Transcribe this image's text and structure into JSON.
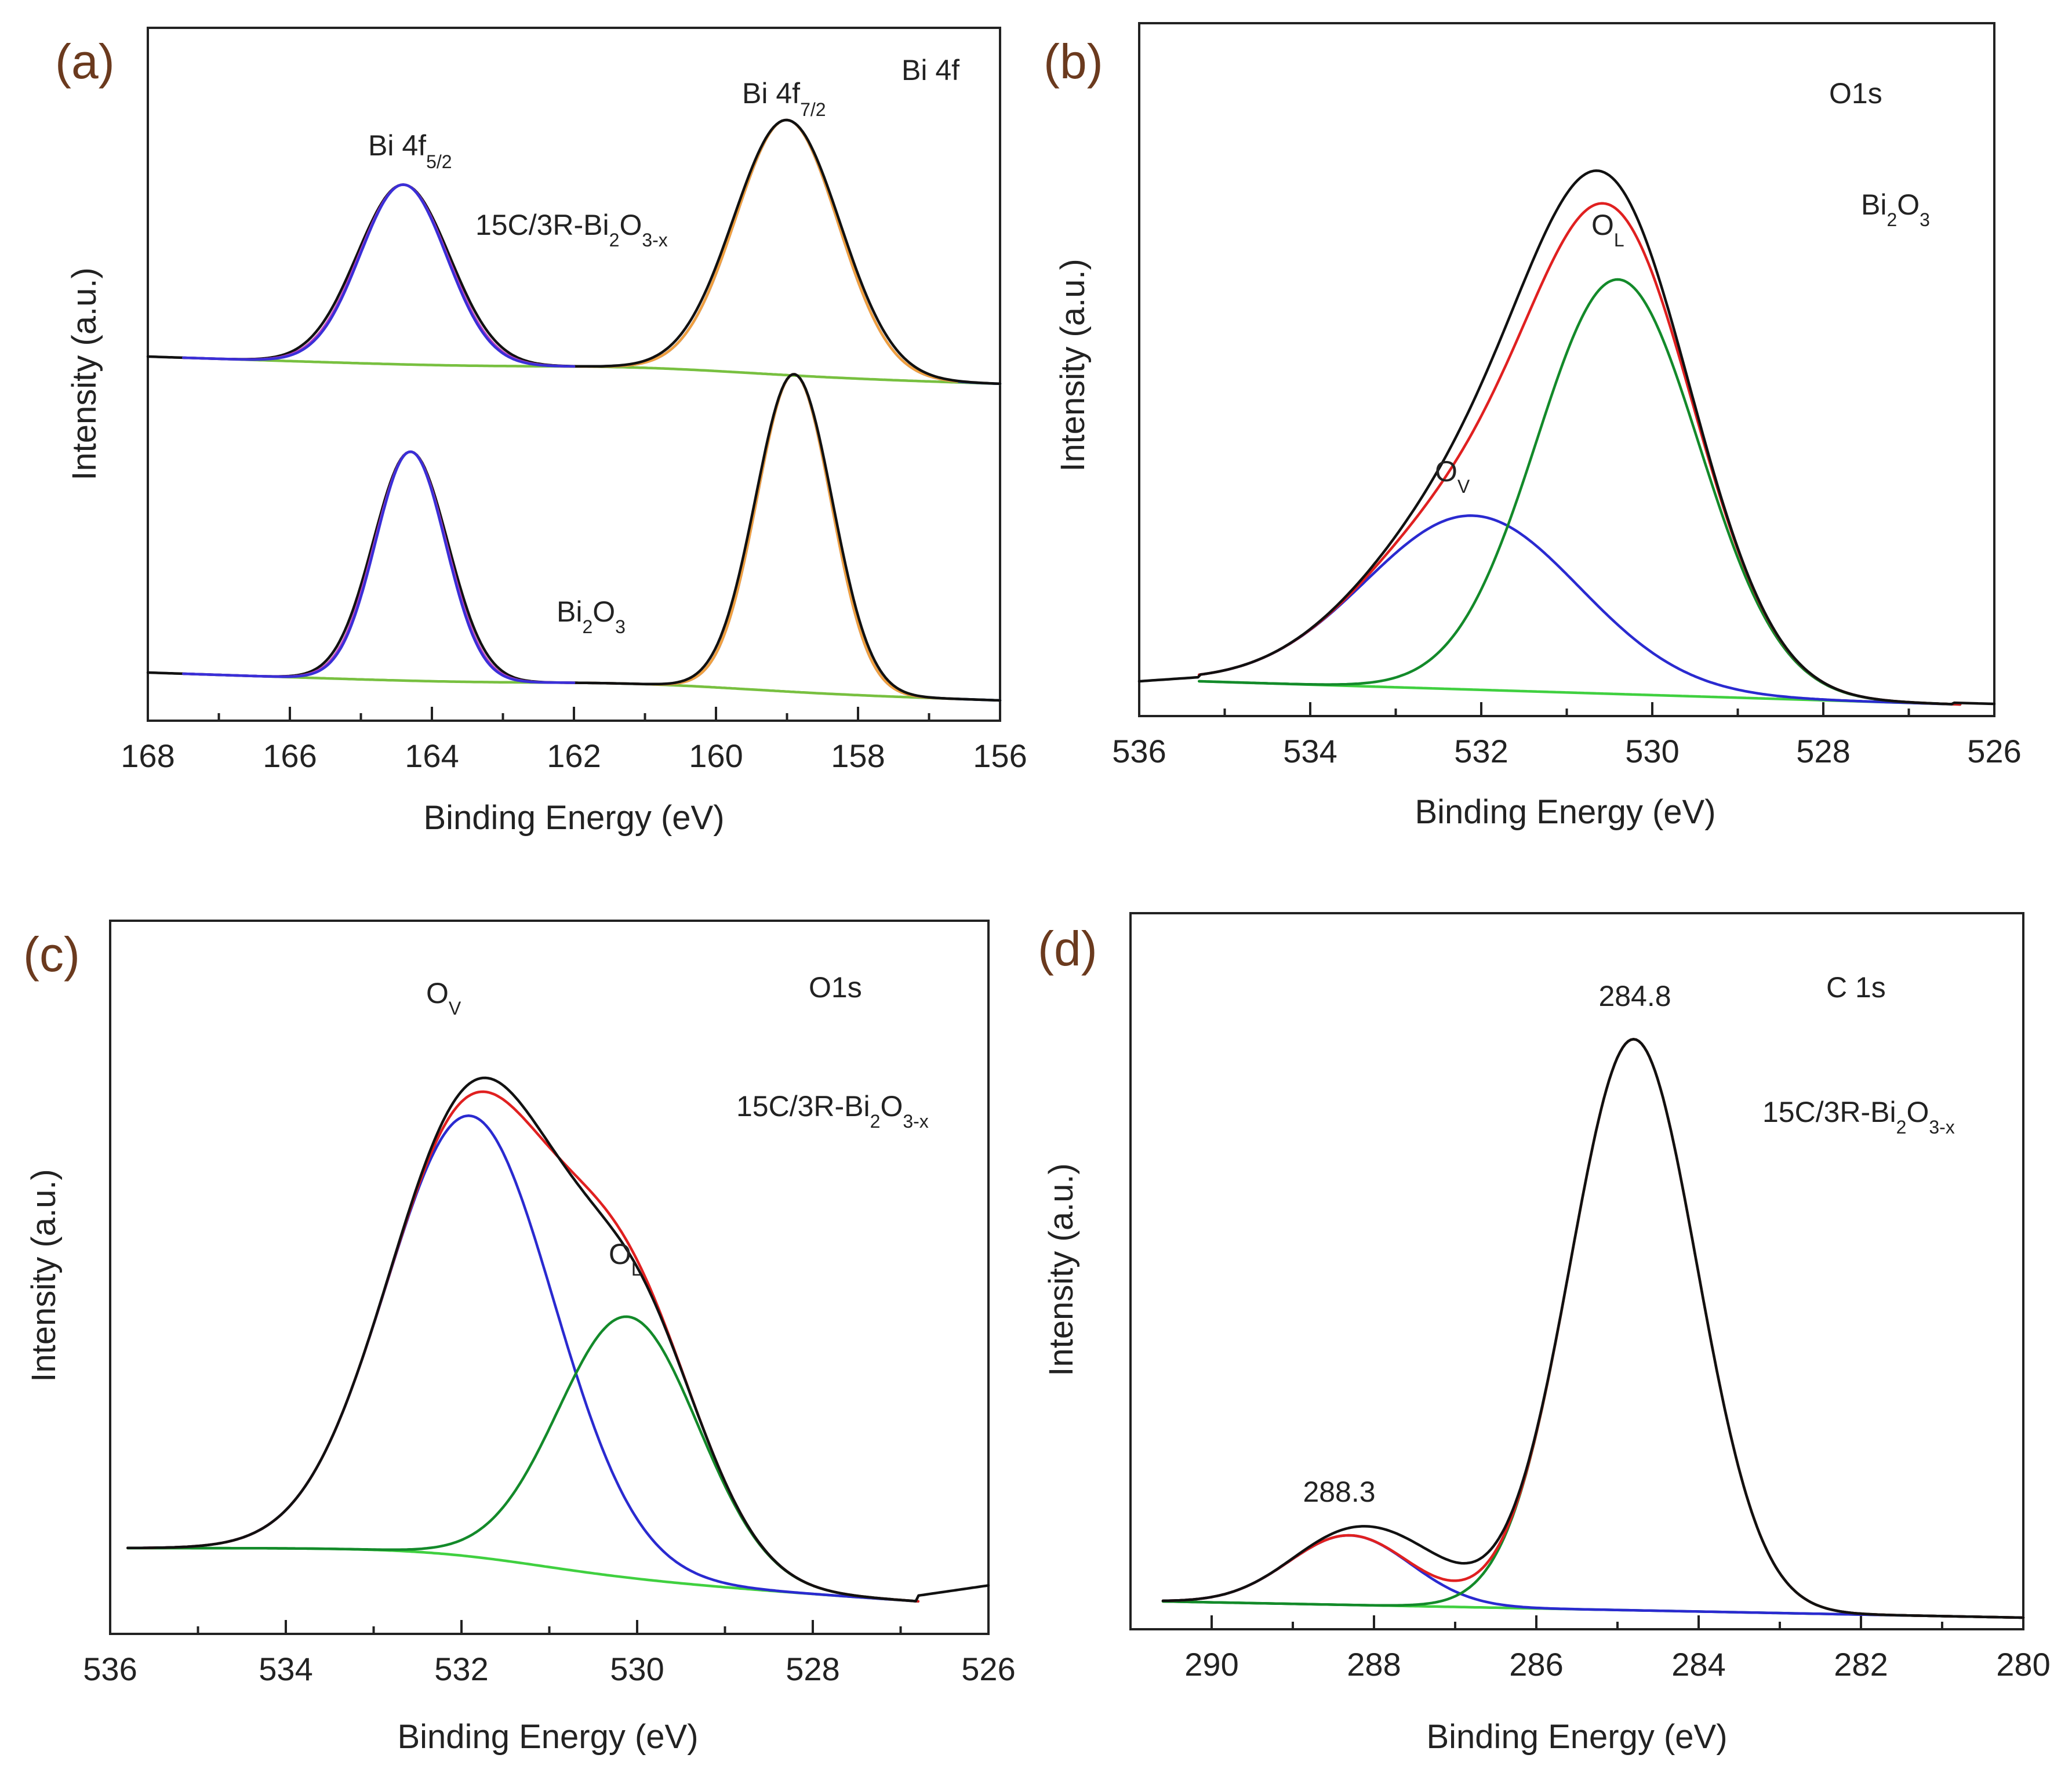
{
  "chart_data": [
    {
      "panel": "(a)",
      "type": "line",
      "title": "Bi 4f",
      "xlabel": "Binding Energy (eV)",
      "ylabel": "Intensity (a.u.)",
      "xlim": [
        168,
        156
      ],
      "xticks": [
        "168",
        "166",
        "164",
        "162",
        "160",
        "158",
        "156"
      ],
      "series_colors": {
        "raw": "#111111",
        "fit_5_2": "#3a2fd8",
        "fit_5_2_envelope": "#c040c0",
        "fit_7_2": "#f0a040",
        "background_a": "#78c040",
        "background_b": "#3050e0"
      },
      "spectra": [
        {
          "name": "15C/3R-Bi2O3-x",
          "peaks": [
            {
              "center": 164.4,
              "label": "Bi 4f5/2"
            },
            {
              "center": 159.0,
              "label": "Bi 4f7/2"
            }
          ]
        },
        {
          "name": "Bi2O3",
          "peaks": [
            {
              "center": 164.3
            },
            {
              "center": 158.9
            }
          ]
        }
      ],
      "annotations": {
        "bi_4f52": {
          "main": "Bi 4f",
          "sub": "5/2"
        },
        "bi_4f72": {
          "main": "Bi 4f",
          "sub": "7/2"
        },
        "sample_top": {
          "p1": "15C/3R-Bi",
          "s1": "2",
          "p2": "O",
          "s2": "3-x"
        },
        "sample_bottom": {
          "p1": "Bi",
          "s1": "2",
          "p2": "O",
          "s2": "3"
        }
      }
    },
    {
      "panel": "(b)",
      "type": "line",
      "title": "O1s",
      "xlabel": "Binding Energy (eV)",
      "ylabel": "Intensity (a.u.)",
      "xlim": [
        536,
        526
      ],
      "xticks": [
        "536",
        "534",
        "532",
        "530",
        "528",
        "526"
      ],
      "sample": {
        "p1": "Bi",
        "s1": "2",
        "p2": "O",
        "s2": "3"
      },
      "components": [
        {
          "label": {
            "main": "O",
            "sub": "V"
          },
          "center": 532.1,
          "color": "#2a2ad0"
        },
        {
          "label": {
            "main": "O",
            "sub": "L"
          },
          "center": 530.4,
          "color": "#138a2a"
        }
      ],
      "series_colors": {
        "raw": "#111111",
        "envelope": "#e02020",
        "background": "#40d040"
      }
    },
    {
      "panel": "(c)",
      "type": "line",
      "title": "O1s",
      "xlabel": "Binding Energy (eV)",
      "ylabel": "Intensity (a.u.)",
      "xlim": [
        536,
        526
      ],
      "xticks": [
        "536",
        "534",
        "532",
        "530",
        "528",
        "526"
      ],
      "sample": {
        "p1": "15C/3R-Bi",
        "s1": "2",
        "p2": "O",
        "s2": "3-x"
      },
      "components": [
        {
          "label": {
            "main": "O",
            "sub": "V"
          },
          "center": 531.9,
          "color": "#2a2ad0"
        },
        {
          "label": {
            "main": "O",
            "sub": "L"
          },
          "center": 530.1,
          "color": "#138a2a"
        }
      ],
      "series_colors": {
        "raw": "#111111",
        "envelope": "#e02020",
        "background": "#40d040"
      }
    },
    {
      "panel": "(d)",
      "type": "line",
      "title": "C 1s",
      "xlabel": "Binding Energy (eV)",
      "ylabel": "Intensity (a.u.)",
      "xlim": [
        291,
        280
      ],
      "xticks": [
        "290",
        "288",
        "286",
        "284",
        "282",
        "280"
      ],
      "sample": {
        "p1": "15C/3R-Bi",
        "s1": "2",
        "p2": "O",
        "s2": "3-x"
      },
      "peaks": [
        {
          "label": "288.3",
          "center": 288.3,
          "color": "#2a2ad0"
        },
        {
          "label": "284.8",
          "center": 284.8,
          "color": "#138a2a"
        }
      ],
      "series_colors": {
        "raw": "#111111",
        "envelope": "#e02020",
        "background": "#40d040"
      }
    }
  ]
}
